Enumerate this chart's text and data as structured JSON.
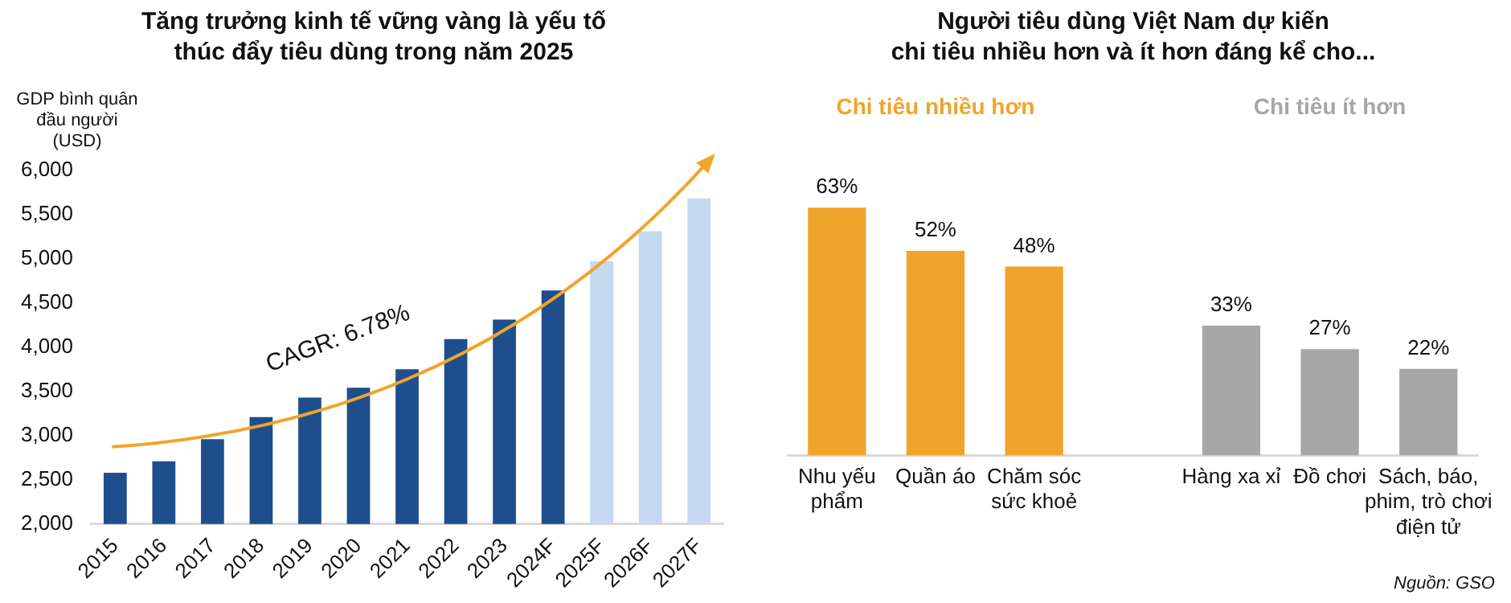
{
  "chart_data": [
    {
      "type": "bar",
      "title": "Tăng trưởng kinh tế vững vàng là yếu tố\nthúc đẩy tiêu dùng trong năm 2025",
      "ylabel": "GDP bình quân\nđầu người\n(USD)",
      "categories": [
        "2015",
        "2016",
        "2017",
        "2018",
        "2019",
        "2020",
        "2021",
        "2022",
        "2023",
        "2024F",
        "2025F",
        "2026F",
        "2027F"
      ],
      "values": [
        2580,
        2710,
        2960,
        3210,
        3430,
        3540,
        3750,
        4090,
        4310,
        4640,
        4970,
        5310,
        5680
      ],
      "colors": [
        "#1f4e8c",
        "#1f4e8c",
        "#1f4e8c",
        "#1f4e8c",
        "#1f4e8c",
        "#1f4e8c",
        "#1f4e8c",
        "#1f4e8c",
        "#1f4e8c",
        "#1f4e8c",
        "#c5d9f1",
        "#c5d9f1",
        "#c5d9f1"
      ],
      "ylim": [
        2000,
        6000
      ],
      "yticks": [
        {
          "value": 2000,
          "label": "2,000"
        },
        {
          "value": 2500,
          "label": "2,500"
        },
        {
          "value": 3000,
          "label": "3,000"
        },
        {
          "value": 3500,
          "label": "3,500"
        },
        {
          "value": 4000,
          "label": "4,000"
        },
        {
          "value": 4500,
          "label": "4,500"
        },
        {
          "value": 5000,
          "label": "5,000"
        },
        {
          "value": 5500,
          "label": "5,500"
        },
        {
          "value": 6000,
          "label": "6,000"
        }
      ],
      "grid": false,
      "legend": false,
      "annotations": [
        "CAGR: 6.78%"
      ]
    },
    {
      "type": "bar",
      "title": "Người tiêu dùng Việt Nam dự kiến\nchi tiêu nhiều hơn và ít hơn đáng kể cho...",
      "stacked": true,
      "categories": [
        "Nhu yếu phẩm",
        "Quần áo",
        "Chăm sóc sức khoẻ",
        null,
        "Hàng xa xỉ",
        "Đồ chơi",
        "Sách, báo, phim, trò chơi điện tử"
      ],
      "series": [
        {
          "name": "Chi tiêu nhiều hơn",
          "color": "#f0a42a",
          "values": [
            63,
            52,
            48,
            null,
            null,
            null,
            null
          ],
          "value_labels": [
            "63%",
            "52%",
            "48%",
            null,
            null,
            null,
            null
          ]
        },
        {
          "name": "Chi tiêu ít hơn",
          "color": "#a6a6a6",
          "values": [
            null,
            null,
            null,
            null,
            33,
            27,
            22
          ],
          "value_labels": [
            null,
            null,
            null,
            null,
            "33%",
            "27%",
            "22%"
          ]
        }
      ],
      "grid": false,
      "legend": false,
      "annotations": [
        "Nguồn: GSO"
      ]
    }
  ]
}
